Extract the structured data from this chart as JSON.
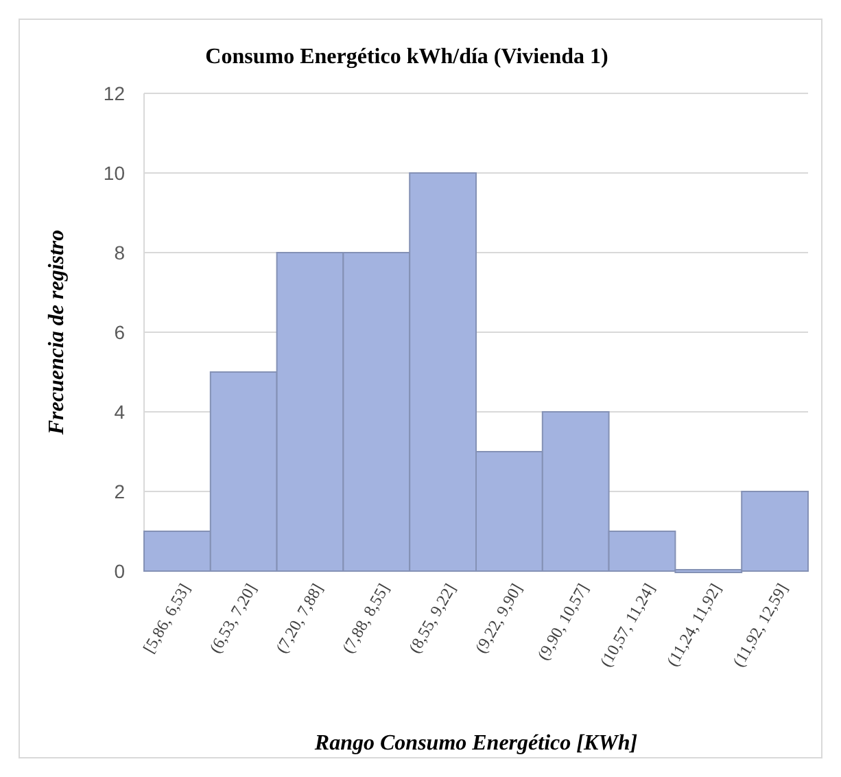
{
  "chart_data": {
    "type": "bar",
    "title": "Consumo Energético kWh/día (Vivienda 1)",
    "xlabel": "Rango Consumo Energético [KWh]",
    "ylabel": "Frecuencia de registro",
    "categories": [
      "[5,86, 6,53]",
      "(6,53, 7,20]",
      "(7,20, 7,88]",
      "(7,88, 8,55]",
      "(8,55, 9,22]",
      "(9,22, 9,90]",
      "(9,90, 10,57]",
      "(10,57, 11,24]",
      "(11,24, 11,92]",
      "(11,92, 12,59]"
    ],
    "values": [
      1,
      5,
      8,
      8,
      10,
      3,
      4,
      1,
      0,
      2
    ],
    "color": "#a3b3e0",
    "ylim": [
      0,
      12
    ],
    "yticks": [
      0,
      2,
      4,
      6,
      8,
      10,
      12
    ],
    "grid": "y"
  }
}
